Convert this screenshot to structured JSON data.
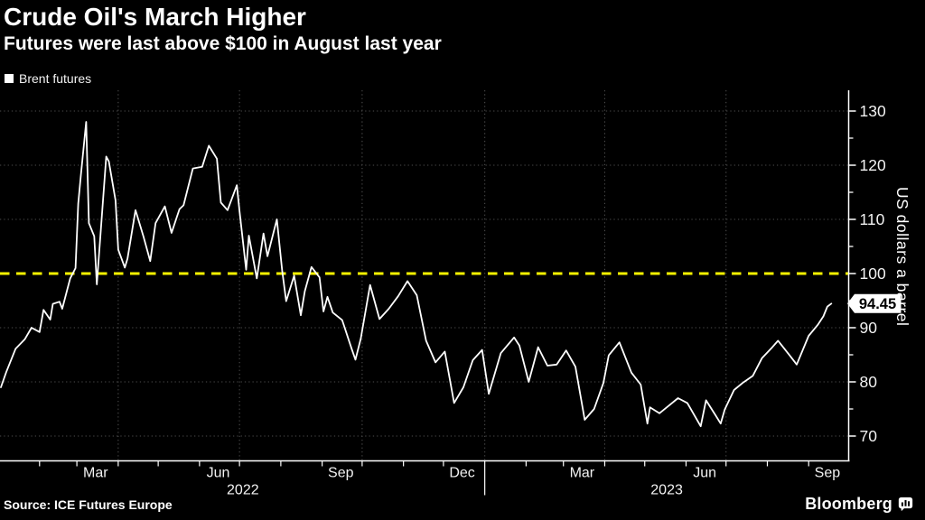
{
  "header": {
    "title": "Crude Oil's March Higher",
    "subtitle": "Futures were last above $100 in August last year"
  },
  "legend": {
    "items": [
      {
        "label": "Brent futures",
        "color": "#ffffff"
      }
    ]
  },
  "footer": {
    "source": "Source: ICE Futures Europe",
    "brand": "Bloomberg"
  },
  "colors": {
    "background": "#000000",
    "text": "#ffffff",
    "grid": "#4b4b4b",
    "axis": "#ffffff",
    "line": "#ffffff",
    "threshold": "#f8f300",
    "tag_bg": "#ffffff",
    "tag_text": "#000000"
  },
  "chart_data": {
    "type": "line",
    "title": "Crude Oil's March Higher",
    "subtitle": "Futures were last above $100 in August last year",
    "ylabel": "US dollars a barrel",
    "y_axis": {
      "min": 70,
      "max": 130,
      "ticks": [
        130,
        120,
        110,
        100,
        90,
        80,
        70
      ],
      "minor_ticks": [
        125,
        115,
        105,
        95,
        85,
        75
      ]
    },
    "threshold": {
      "value": 100,
      "color": "#f8f300",
      "style": "dashed"
    },
    "x_axis": {
      "start": "2022-01-03",
      "end": "2023-10-01",
      "grid_dates": [
        "2022-04-01",
        "2022-07-01",
        "2022-10-01",
        "2023-01-01",
        "2023-04-01",
        "2023-07-01"
      ],
      "month_labels": [
        {
          "label": "Mar",
          "date": "2022-03-15"
        },
        {
          "label": "Jun",
          "date": "2022-06-15"
        },
        {
          "label": "Sep",
          "date": "2022-09-15"
        },
        {
          "label": "Dec",
          "date": "2022-12-15"
        },
        {
          "label": "Mar",
          "date": "2023-03-15"
        },
        {
          "label": "Jun",
          "date": "2023-06-15"
        },
        {
          "label": "Sep",
          "date": "2023-09-15"
        }
      ],
      "years": [
        {
          "label": "2022",
          "from": "2022-01-03",
          "to": "2023-01-01"
        },
        {
          "label": "2023",
          "from": "2023-01-01",
          "to": "2023-10-01"
        }
      ]
    },
    "last_point": {
      "date": "2023-09-18",
      "value": 94.45,
      "label": "94.45"
    },
    "series": [
      {
        "name": "Brent futures",
        "color": "#ffffff",
        "points": [
          [
            "2022-01-03",
            79.0
          ],
          [
            "2022-01-07",
            81.8
          ],
          [
            "2022-01-14",
            86.1
          ],
          [
            "2022-01-21",
            87.9
          ],
          [
            "2022-01-26",
            90.0
          ],
          [
            "2022-02-01",
            89.2
          ],
          [
            "2022-02-04",
            93.3
          ],
          [
            "2022-02-09",
            91.5
          ],
          [
            "2022-02-11",
            94.4
          ],
          [
            "2022-02-16",
            94.8
          ],
          [
            "2022-02-18",
            93.5
          ],
          [
            "2022-02-24",
            99.1
          ],
          [
            "2022-02-28",
            101.0
          ],
          [
            "2022-03-02",
            112.9
          ],
          [
            "2022-03-04",
            118.1
          ],
          [
            "2022-03-08",
            128.0
          ],
          [
            "2022-03-10",
            109.3
          ],
          [
            "2022-03-14",
            106.9
          ],
          [
            "2022-03-16",
            98.0
          ],
          [
            "2022-03-23",
            121.6
          ],
          [
            "2022-03-25",
            120.7
          ],
          [
            "2022-03-30",
            113.5
          ],
          [
            "2022-04-01",
            104.4
          ],
          [
            "2022-04-06",
            101.1
          ],
          [
            "2022-04-08",
            102.8
          ],
          [
            "2022-04-14",
            111.7
          ],
          [
            "2022-04-20",
            106.8
          ],
          [
            "2022-04-25",
            102.3
          ],
          [
            "2022-04-29",
            109.3
          ],
          [
            "2022-05-06",
            112.4
          ],
          [
            "2022-05-11",
            107.5
          ],
          [
            "2022-05-17",
            111.9
          ],
          [
            "2022-05-20",
            112.6
          ],
          [
            "2022-05-27",
            119.4
          ],
          [
            "2022-06-03",
            119.7
          ],
          [
            "2022-06-08",
            123.6
          ],
          [
            "2022-06-14",
            121.2
          ],
          [
            "2022-06-17",
            113.1
          ],
          [
            "2022-06-22",
            111.7
          ],
          [
            "2022-06-29",
            116.3
          ],
          [
            "2022-07-01",
            111.6
          ],
          [
            "2022-07-06",
            100.7
          ],
          [
            "2022-07-08",
            107.0
          ],
          [
            "2022-07-14",
            99.1
          ],
          [
            "2022-07-19",
            107.4
          ],
          [
            "2022-07-22",
            103.2
          ],
          [
            "2022-07-29",
            110.0
          ],
          [
            "2022-08-02",
            100.5
          ],
          [
            "2022-08-05",
            94.9
          ],
          [
            "2022-08-11",
            99.6
          ],
          [
            "2022-08-16",
            92.3
          ],
          [
            "2022-08-19",
            96.7
          ],
          [
            "2022-08-24",
            101.2
          ],
          [
            "2022-08-30",
            99.3
          ],
          [
            "2022-09-02",
            93.0
          ],
          [
            "2022-09-05",
            95.7
          ],
          [
            "2022-09-09",
            92.8
          ],
          [
            "2022-09-16",
            91.4
          ],
          [
            "2022-09-23",
            86.2
          ],
          [
            "2022-09-26",
            84.1
          ],
          [
            "2022-09-30",
            88.0
          ],
          [
            "2022-10-07",
            97.9
          ],
          [
            "2022-10-14",
            91.6
          ],
          [
            "2022-10-21",
            93.5
          ],
          [
            "2022-10-28",
            95.8
          ],
          [
            "2022-11-04",
            98.6
          ],
          [
            "2022-11-11",
            96.0
          ],
          [
            "2022-11-18",
            87.6
          ],
          [
            "2022-11-25",
            83.6
          ],
          [
            "2022-12-02",
            85.6
          ],
          [
            "2022-12-09",
            76.1
          ],
          [
            "2022-12-16",
            79.0
          ],
          [
            "2022-12-23",
            84.0
          ],
          [
            "2022-12-30",
            85.9
          ],
          [
            "2023-01-04",
            77.8
          ],
          [
            "2023-01-13",
            85.3
          ],
          [
            "2023-01-23",
            88.2
          ],
          [
            "2023-01-27",
            86.7
          ],
          [
            "2023-02-03",
            80.0
          ],
          [
            "2023-02-10",
            86.4
          ],
          [
            "2023-02-17",
            83.0
          ],
          [
            "2023-02-24",
            83.2
          ],
          [
            "2023-03-03",
            85.8
          ],
          [
            "2023-03-10",
            82.8
          ],
          [
            "2023-03-17",
            73.0
          ],
          [
            "2023-03-24",
            75.0
          ],
          [
            "2023-03-31",
            79.8
          ],
          [
            "2023-04-04",
            84.9
          ],
          [
            "2023-04-12",
            87.3
          ],
          [
            "2023-04-21",
            81.7
          ],
          [
            "2023-04-28",
            79.5
          ],
          [
            "2023-05-03",
            72.3
          ],
          [
            "2023-05-05",
            75.3
          ],
          [
            "2023-05-12",
            74.2
          ],
          [
            "2023-05-19",
            75.6
          ],
          [
            "2023-05-26",
            77.0
          ],
          [
            "2023-06-02",
            76.1
          ],
          [
            "2023-06-12",
            71.8
          ],
          [
            "2023-06-16",
            76.6
          ],
          [
            "2023-06-23",
            73.9
          ],
          [
            "2023-06-27",
            72.3
          ],
          [
            "2023-06-30",
            74.9
          ],
          [
            "2023-07-07",
            78.5
          ],
          [
            "2023-07-14",
            79.9
          ],
          [
            "2023-07-21",
            81.1
          ],
          [
            "2023-07-28",
            84.4
          ],
          [
            "2023-08-04",
            86.2
          ],
          [
            "2023-08-09",
            87.6
          ],
          [
            "2023-08-18",
            84.8
          ],
          [
            "2023-08-23",
            83.2
          ],
          [
            "2023-09-01",
            88.5
          ],
          [
            "2023-09-08",
            90.6
          ],
          [
            "2023-09-12",
            92.1
          ],
          [
            "2023-09-15",
            93.9
          ],
          [
            "2023-09-18",
            94.45
          ]
        ]
      }
    ]
  }
}
